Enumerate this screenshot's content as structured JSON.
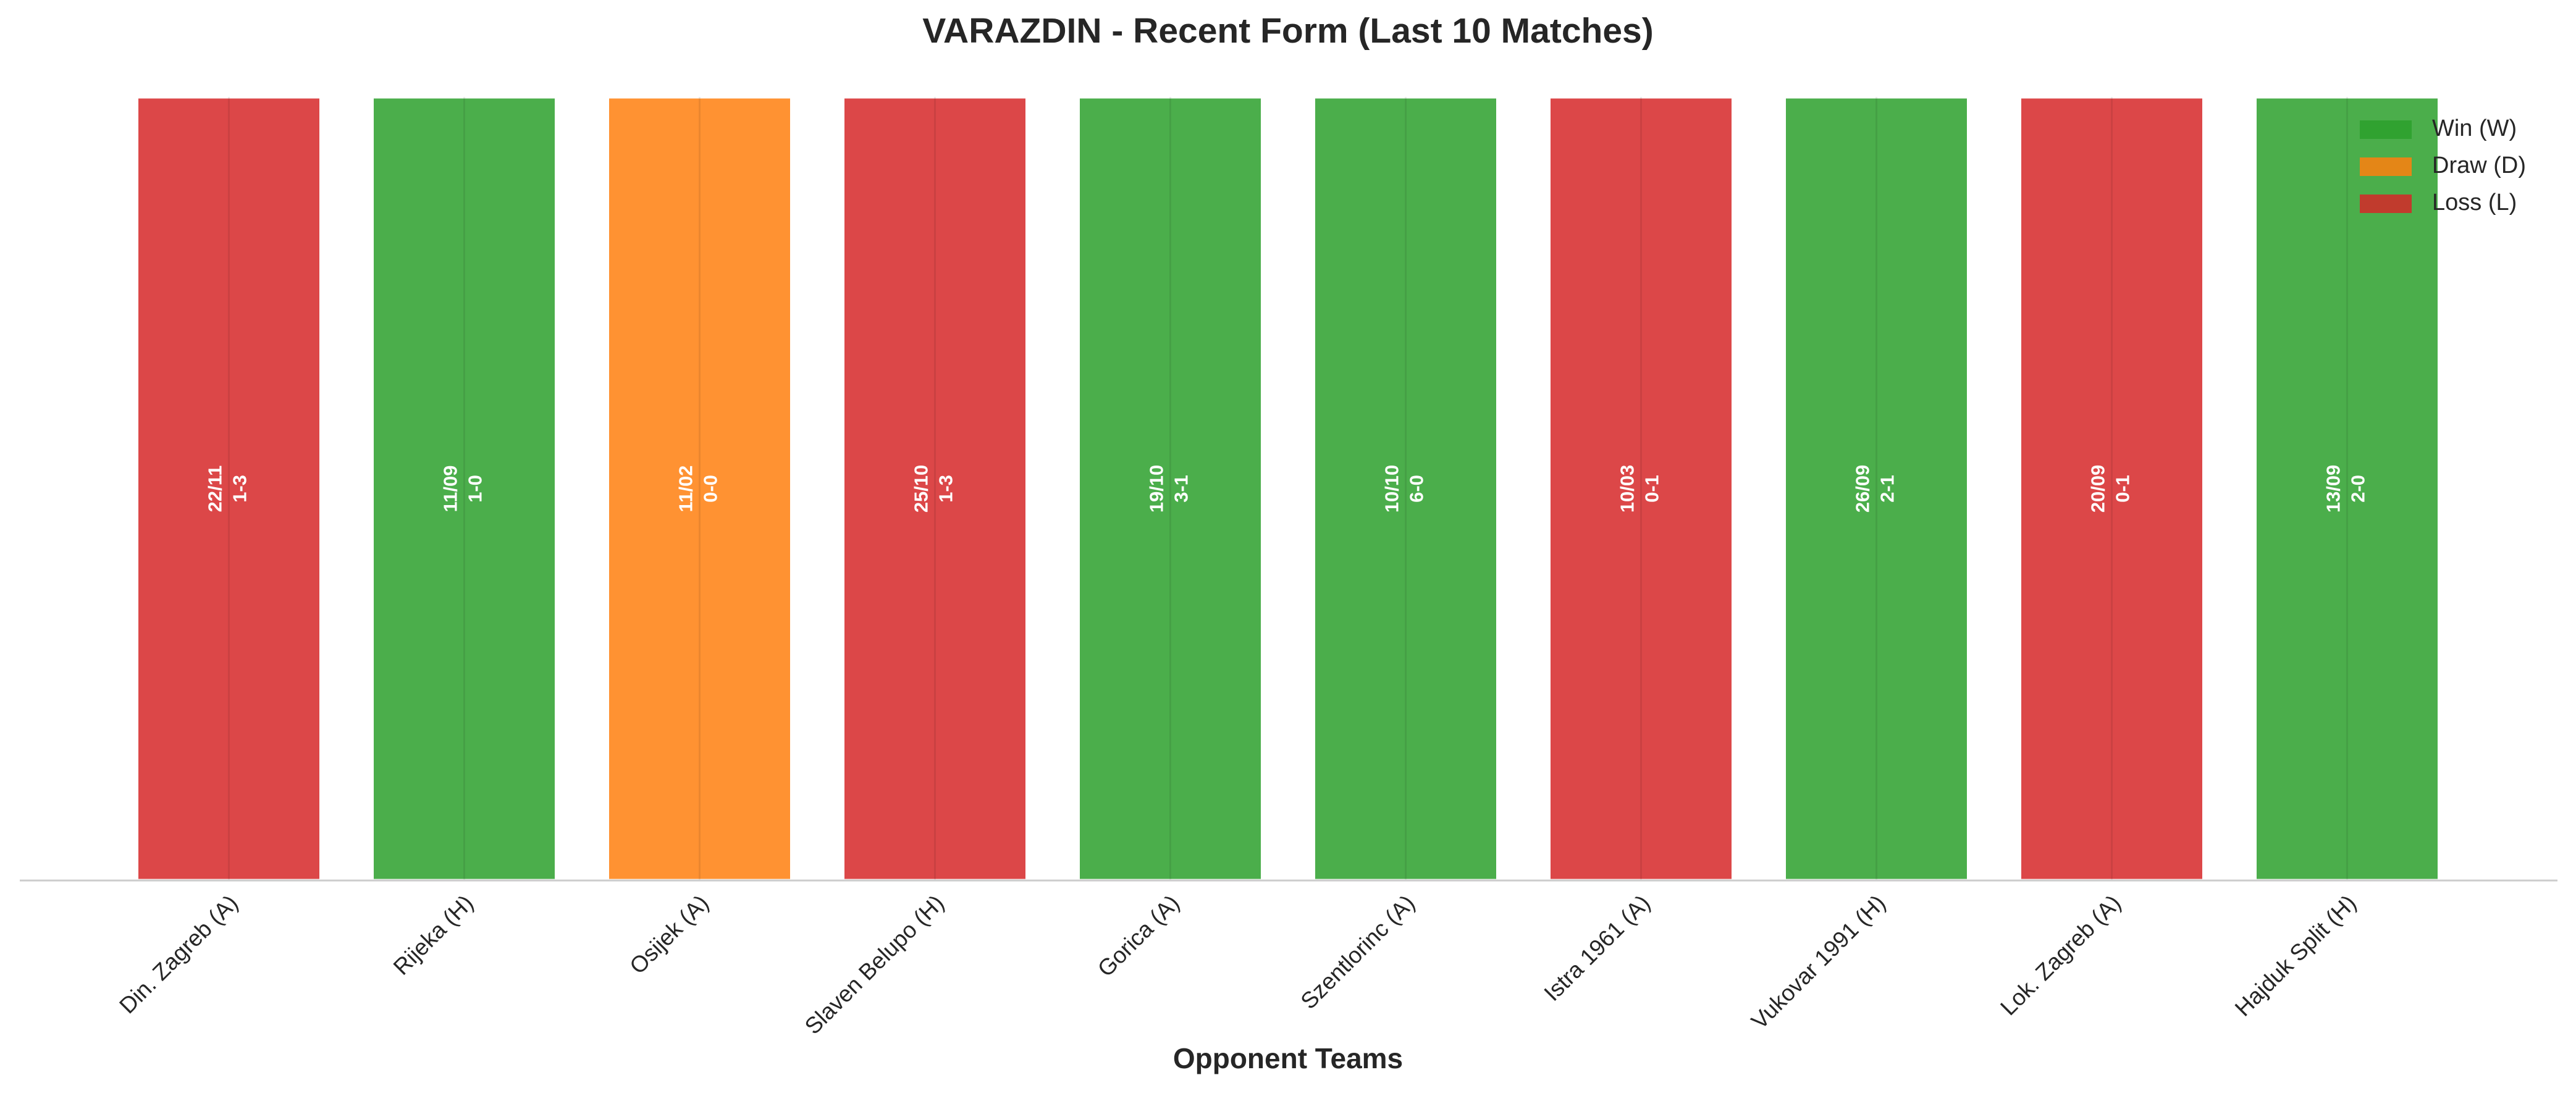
{
  "chart_data": {
    "type": "bar",
    "title": "VARAZDIN - Recent Form (Last 10 Matches)",
    "xlabel": "Opponent Teams",
    "categories": [
      "Din. Zagreb (A)",
      "Rijeka (H)",
      "Osijek (A)",
      "Slaven Belupo (H)",
      "Gorica (A)",
      "Szentlorinc (A)",
      "Istra 1961 (A)",
      "Vukovar 1991 (H)",
      "Lok. Zagreb (A)",
      "Hajduk Split (H)"
    ],
    "values": [
      1,
      1,
      1,
      1,
      1,
      1,
      1,
      1,
      1,
      1
    ],
    "dates": [
      "22/11",
      "11/09",
      "11/02",
      "25/10",
      "19/10",
      "10/10",
      "10/03",
      "26/09",
      "20/09",
      "13/09"
    ],
    "scores": [
      "1-3",
      "1-0",
      "0-0",
      "1-3",
      "3-1",
      "6-0",
      "0-1",
      "2-1",
      "0-1",
      "2-0"
    ],
    "colors": [
      "#d62728",
      "#2ca02c",
      "#ff7f0e",
      "#d62728",
      "#2ca02c",
      "#2ca02c",
      "#d62728",
      "#2ca02c",
      "#d62728",
      "#2ca02c"
    ],
    "ylim": [
      0,
      1
    ],
    "legend_position": "upper right",
    "legend": [
      {
        "name": "Win (W)",
        "color": "#2ca02c"
      },
      {
        "name": "Draw (D)",
        "color": "#ff7f0e"
      },
      {
        "name": "Loss (L)",
        "color": "#d62728"
      }
    ]
  }
}
